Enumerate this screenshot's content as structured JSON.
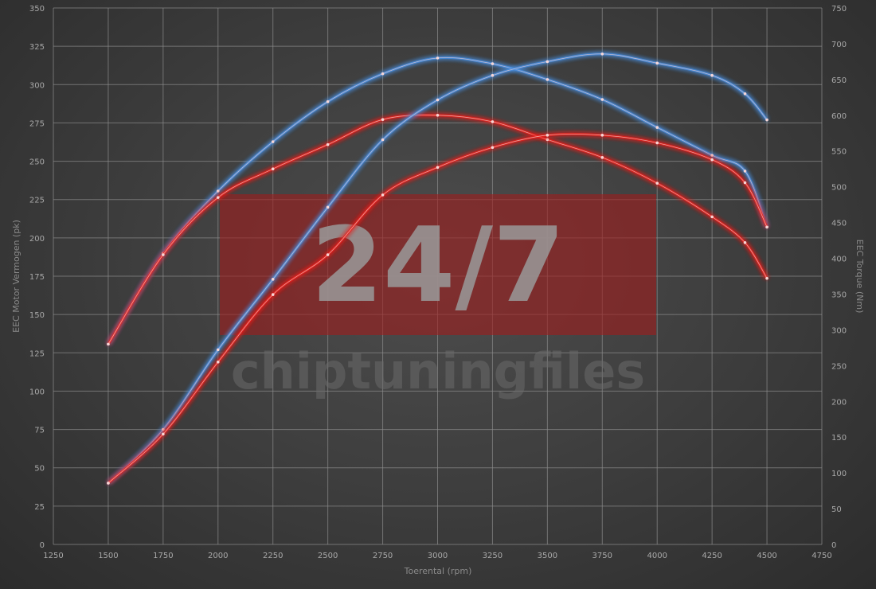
{
  "chart_data": {
    "type": "line",
    "title": "",
    "xlabel": "Toerental (rpm)",
    "ylabel_left": "EEC Motor Vermogen (pk)",
    "ylabel_right": "EEC Torque (Nm)",
    "xlim": [
      1250,
      4750
    ],
    "ylim_left": [
      0,
      350
    ],
    "ylim_right": [
      0,
      750
    ],
    "x_ticks": [
      1250,
      1500,
      1750,
      2000,
      2250,
      2500,
      2750,
      3000,
      3250,
      3500,
      3750,
      4000,
      4250,
      4500,
      4750
    ],
    "y_ticks_left": [
      0,
      25,
      50,
      75,
      100,
      125,
      150,
      175,
      200,
      225,
      250,
      275,
      300,
      325,
      350
    ],
    "y_ticks_right": [
      0,
      50,
      100,
      150,
      200,
      250,
      300,
      350,
      400,
      450,
      500,
      550,
      600,
      650,
      700,
      750
    ],
    "grid": true,
    "x": [
      1500,
      1750,
      2000,
      2250,
      2500,
      2750,
      3000,
      3250,
      3500,
      3750,
      4000,
      4250,
      4400,
      4500
    ],
    "series": [
      {
        "axis": "right",
        "color": "#4a90e2",
        "values": [
          280,
          407,
          494,
          563,
          619,
          658,
          680,
          672,
          650,
          622,
          583,
          544,
          522,
          444
        ]
      },
      {
        "axis": "right",
        "color": "#e8231f",
        "values": [
          280,
          405,
          485,
          525,
          559,
          594,
          600,
          591,
          566,
          541,
          505,
          458,
          422,
          372
        ]
      },
      {
        "axis": "left",
        "color": "#4a90e2",
        "values": [
          40,
          75,
          127,
          173,
          220,
          264,
          290,
          306,
          315,
          320,
          314,
          306,
          294,
          277
        ]
      },
      {
        "axis": "left",
        "color": "#e8231f",
        "values": [
          40,
          72,
          119,
          163,
          189,
          228,
          246,
          259,
          267,
          267,
          262,
          251,
          236,
          207
        ]
      }
    ]
  },
  "watermark": {
    "logo": "24/7",
    "text": "chiptuningfiles"
  }
}
